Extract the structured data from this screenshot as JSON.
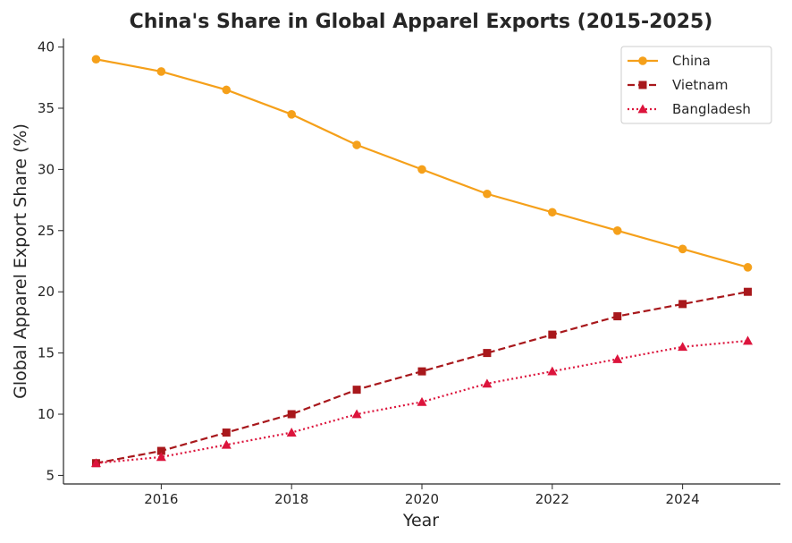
{
  "chart_data": {
    "type": "line",
    "title": "China's Share in Global Apparel Exports (2015-2025)",
    "xlabel": "Year",
    "ylabel": "Global Apparel Export Share (%)",
    "x": [
      2015,
      2016,
      2017,
      2018,
      2019,
      2020,
      2021,
      2022,
      2023,
      2024,
      2025
    ],
    "xlim": [
      2014.5,
      2025.5
    ],
    "ylim": [
      4.3,
      40.7
    ],
    "xticks": [
      2016,
      2018,
      2020,
      2022,
      2024
    ],
    "yticks": [
      5,
      10,
      15,
      20,
      25,
      30,
      35,
      40
    ],
    "grid": false,
    "legend_position": "top-right",
    "series": [
      {
        "name": "China",
        "color": "#f5a01a",
        "line_style": "solid",
        "marker": "circle",
        "values": [
          39,
          38,
          36.5,
          34.5,
          32,
          30,
          28,
          26.5,
          25,
          23.5,
          22
        ]
      },
      {
        "name": "Vietnam",
        "color": "#a8181c",
        "line_style": "dashed",
        "marker": "square",
        "values": [
          6,
          7,
          8.5,
          10,
          12,
          13.5,
          15,
          16.5,
          18,
          19,
          20
        ]
      },
      {
        "name": "Bangladesh",
        "color": "#dc143c",
        "line_style": "dotted",
        "marker": "triangle",
        "values": [
          6,
          6.5,
          7.5,
          8.5,
          10,
          11,
          12.5,
          13.5,
          14.5,
          15.5,
          16
        ]
      }
    ]
  }
}
